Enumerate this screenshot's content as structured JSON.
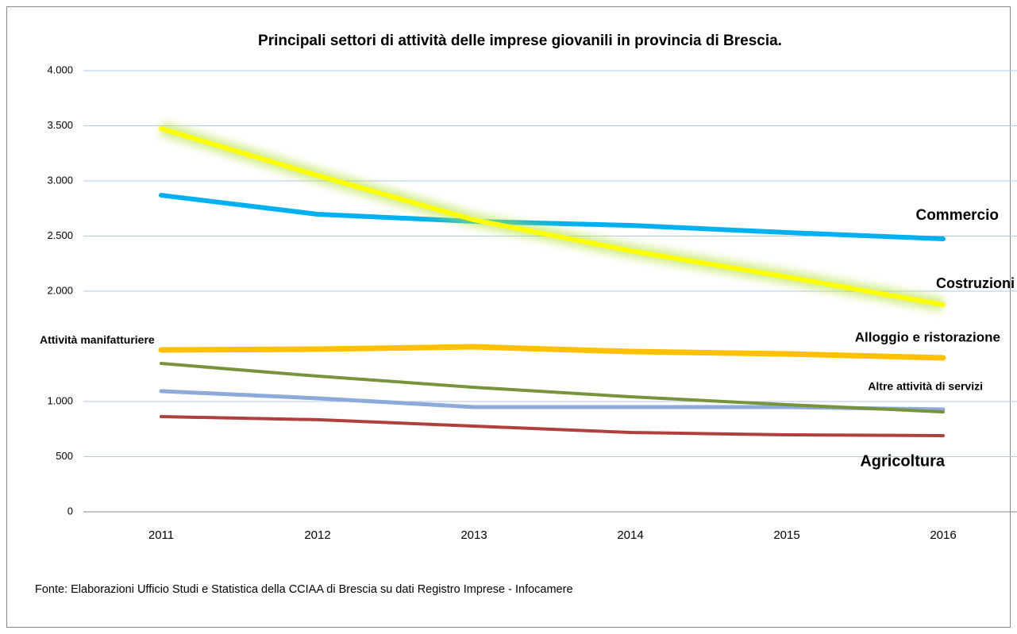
{
  "chart_data": {
    "type": "line",
    "title": "Principali settori di attività delle imprese giovanili in provincia di Brescia.",
    "source": "Fonte: Elaborazioni Ufficio Studi e Statistica della CCIAA di Brescia su dati Registro Imprese - Infocamere",
    "categories": [
      "2011",
      "2012",
      "2013",
      "2014",
      "2015",
      "2016"
    ],
    "series": [
      {
        "name": "Commercio",
        "color": "#00b0f0",
        "values": [
          2870,
          2698,
          2633,
          2597,
          2532,
          2475
        ]
      },
      {
        "name": "Costruzioni",
        "color": "#ffff00",
        "glow": true,
        "values": [
          3475,
          3050,
          2647,
          2367,
          2130,
          1878
        ]
      },
      {
        "name": "Alloggio e ristorazione",
        "color": "#ffc000",
        "values": [
          1468,
          1475,
          1496,
          1453,
          1432,
          1396
        ]
      },
      {
        "name": "Attività manifatturiere",
        "color": "#77933c",
        "values": [
          1345,
          1230,
          1129,
          1043,
          971,
          906
        ]
      },
      {
        "name": "Altre attività di servizi",
        "color": "#8eaadb",
        "values": [
          1094,
          1029,
          950,
          950,
          950,
          928
        ]
      },
      {
        "name": "Agricoltura",
        "color": "#b0403d",
        "values": [
          863,
          835,
          777,
          719,
          698,
          691
        ]
      }
    ],
    "ylim": [
      0,
      4000
    ],
    "yticks": [
      0,
      500,
      {
        "value": 1000,
        "label": "1.000"
      },
      {
        "value": 2000,
        "label": "2.000"
      },
      {
        "value": 2500,
        "label": "2.500"
      },
      {
        "value": 3000,
        "label": "3.000"
      },
      {
        "value": 3500,
        "label": "3.500"
      },
      {
        "value": 4000,
        "label": "4.000"
      }
    ],
    "grid": true
  }
}
